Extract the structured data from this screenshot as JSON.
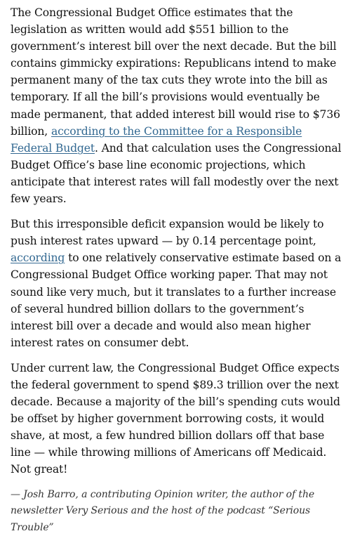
{
  "article": {
    "paragraphs": [
      {
        "segments": [
          {
            "text": "The Congressional Budget Office estimates that the legislation as written would add $551 billion to the government’s interest bill over the next decade. But the bill contains gimmicky expirations: Republicans intend to make permanent many of the tax cuts they wrote into the bill as temporary. If all the bill’s provisions would eventually be made permanent, that added interest bill would rise to $736 billion, "
          },
          {
            "text": "according to the Committee for a Responsible Federal Budget",
            "link": true,
            "name": "crfb-link"
          },
          {
            "text": ". And that calculation uses the Congressional Budget Office’s base line economic projections, which anticipate that interest rates will fall modestly over the next few years."
          }
        ]
      },
      {
        "segments": [
          {
            "text": "But this irresponsible deficit expansion would be likely to push interest rates upward — by 0.14 percentage point, "
          },
          {
            "text": "according",
            "link": true,
            "name": "cbo-working-paper-link"
          },
          {
            "text": " to one relatively conservative estimate based on a Congressional Budget Office working paper. That may not sound like very much, but it translates to a further increase of several hundred billion dollars to the government’s interest bill over a decade and would also mean higher interest rates on consumer debt."
          }
        ]
      },
      {
        "segments": [
          {
            "text": "Under current law, the Congressional Budget Office expects the federal government to spend $89.3 trillion over the next decade. Because a majority of the bill’s spending cuts would be offset by higher government borrowing costs, it would shave, at most, a few hundred billion dollars off that base line — while throwing millions of Americans off Medicaid. Not great!"
          }
        ]
      }
    ],
    "byline": "— Josh Barro, a contributing Opinion writer, the author of the newsletter Very Serious and the host of the podcast “Serious Trouble”"
  },
  "colors": {
    "text": "#121212",
    "link": "#326891",
    "byline": "#333333",
    "background": "#ffffff"
  }
}
